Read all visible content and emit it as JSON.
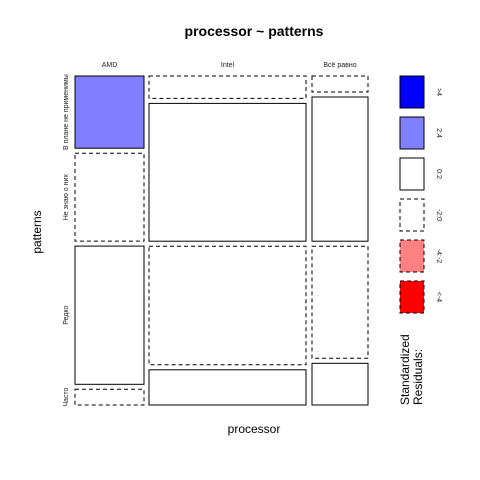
{
  "chart_data": {
    "type": "mosaic",
    "title": "processor ~ patterns",
    "xlabel": "processor",
    "ylabel": "patterns",
    "columns": [
      "AMD",
      "Intel",
      "Всё равно"
    ],
    "rows": [
      "В плане не применимы",
      "Не знаю о них",
      "Редко",
      "Часто"
    ],
    "cells": [
      {
        "column": "AMD",
        "row": "В плане не применимы",
        "proportion": 0.23,
        "residual_level": "2:4"
      },
      {
        "column": "AMD",
        "row": "Не знаю о них",
        "proportion": 0.28,
        "residual_level": "-2:0"
      },
      {
        "column": "AMD",
        "row": "Редко",
        "proportion": 0.44,
        "residual_level": "0:2"
      },
      {
        "column": "AMD",
        "row": "Часто",
        "proportion": 0.05,
        "residual_level": "-2:0"
      },
      {
        "column": "Intel",
        "row": "В плане не применимы",
        "proportion": 0.07,
        "residual_level": "-2:0"
      },
      {
        "column": "Intel",
        "row": "Не знаю о них",
        "proportion": 0.43,
        "residual_level": "0:2"
      },
      {
        "column": "Intel",
        "row": "Редко",
        "proportion": 0.37,
        "residual_level": "-2:0"
      },
      {
        "column": "Intel",
        "row": "Часто",
        "proportion": 0.11,
        "residual_level": "0:2"
      },
      {
        "column": "Всё равно",
        "row": "В плане не применимы",
        "proportion": 0.05,
        "residual_level": "-2:0"
      },
      {
        "column": "Всё равно",
        "row": "Не знаю о них",
        "proportion": 0.45,
        "residual_level": "0:2"
      },
      {
        "column": "Всё равно",
        "row": "Редко",
        "proportion": 0.35,
        "residual_level": "-2:0"
      },
      {
        "column": "Всё равно",
        "row": "Часто",
        "proportion": 0.13,
        "residual_level": "0:2"
      }
    ],
    "legend": {
      "title_line1": "Standardized",
      "title_line2": "Residuals:",
      "placement": "right",
      "items": [
        {
          "label": ">4",
          "color": "#0000ff",
          "dashed": false
        },
        {
          "label": "2:4",
          "color": "#8080ff",
          "dashed": false
        },
        {
          "label": "0:2",
          "color": "#ffffff",
          "dashed": false
        },
        {
          "label": "-2:0",
          "color": "#ffffff",
          "dashed": true
        },
        {
          "label": "-4:-2",
          "color": "#ff8080",
          "dashed": true
        },
        {
          "label": "<-4",
          "color": "#ff0000",
          "dashed": true
        }
      ]
    }
  }
}
